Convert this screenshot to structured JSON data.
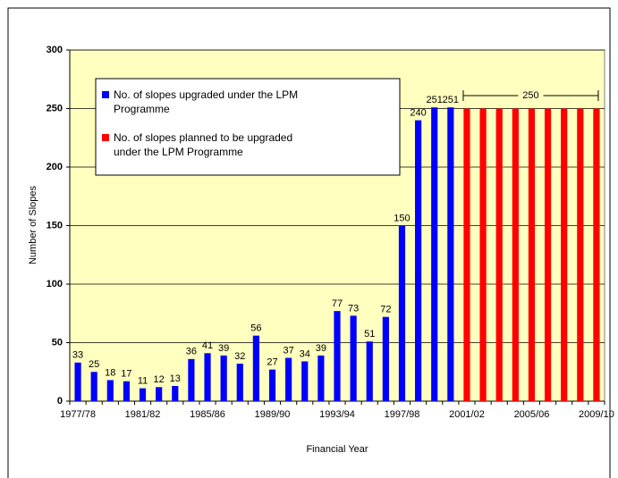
{
  "chart_data": {
    "type": "bar",
    "y_label": "Number of Slopes",
    "x_label": "Financial Year",
    "categories": [
      "1977/78",
      null,
      null,
      null,
      "1981/82",
      null,
      null,
      null,
      "1985/86",
      null,
      null,
      null,
      "1989/90",
      null,
      null,
      null,
      "1993/94",
      null,
      null,
      null,
      "1997/98",
      null,
      null,
      null,
      "2001/02",
      null,
      null,
      null,
      "2005/06",
      null,
      null,
      null,
      "2009/10"
    ],
    "series": [
      {
        "name": "No. of slopes upgraded under the LPM Programme",
        "color": "#0000ff",
        "values": [
          33,
          25,
          18,
          17,
          11,
          12,
          13,
          36,
          41,
          39,
          32,
          56,
          27,
          37,
          34,
          39,
          77,
          73,
          51,
          72,
          150,
          240,
          251,
          251,
          null,
          null,
          null,
          null,
          null,
          null,
          null,
          null,
          null
        ]
      },
      {
        "name": "No. of slopes planned to be upgraded under the LPM Programme",
        "color": "#ff0000",
        "values": [
          null,
          null,
          null,
          null,
          null,
          null,
          null,
          null,
          null,
          null,
          null,
          null,
          null,
          null,
          null,
          null,
          null,
          null,
          null,
          null,
          null,
          null,
          null,
          null,
          250,
          250,
          250,
          250,
          250,
          250,
          250,
          250,
          250
        ]
      }
    ],
    "annotation": "250",
    "ylim": [
      0,
      300
    ],
    "yticks": [
      0,
      50,
      100,
      150,
      200,
      250,
      300
    ],
    "grid": true,
    "plot_background": "#ffffc0"
  }
}
